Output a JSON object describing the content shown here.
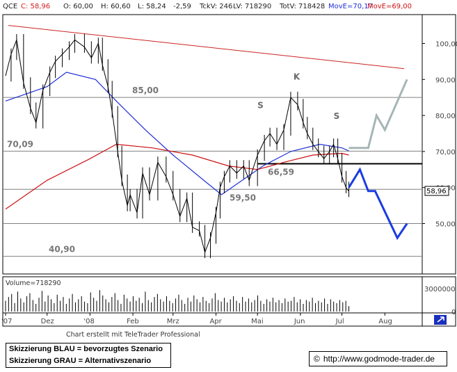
{
  "header": {
    "symbol": "QCE",
    "close": "C: 58,96",
    "open": "O: 60,00",
    "high": "H: 60,60",
    "low": "L: 58,24",
    "change": "-2,59",
    "tick_volume": "TckV: 246",
    "last_volume": "LV: 718290",
    "total_volume": "TotV: 718428",
    "ma_blue": "MovE=70,17",
    "ma_red": "MovE=69,00"
  },
  "colors": {
    "price": "#000000",
    "ma_blue": "#1f2fd6",
    "ma_red": "#cc1111",
    "trend": "#cc2222",
    "level": "#808080",
    "support": "#000000",
    "scenario_blue": "#1a3de0",
    "scenario_gray": "#a6b5b5",
    "volume": "#000000"
  },
  "chart_data": {
    "type": "line",
    "title": "",
    "ylim": [
      36,
      108
    ],
    "y_ticks": [
      "100,00",
      "90,00",
      "80,00",
      "70,00",
      "60,00",
      "50,00"
    ],
    "y_tick_values": [
      100,
      90,
      80,
      70,
      60,
      50
    ],
    "x_ticks": [
      "'07",
      "Dez",
      "'08",
      "Feb",
      "Mrz",
      "Apr",
      "Mai",
      "Jun",
      "Jul",
      "Aug"
    ],
    "x_tick_dates": [
      "2007-11-01",
      "2007-12-01",
      "2008-01-01",
      "2008-02-01",
      "2008-03-01",
      "2008-04-01",
      "2008-05-01",
      "2008-06-01",
      "2008-07-01",
      "2008-08-01"
    ],
    "last_price_label": "58,96",
    "price_series": {
      "name": "QCE",
      "points": [
        [
          "2007-11-01",
          91
        ],
        [
          "2007-11-05",
          97
        ],
        [
          "2007-11-09",
          101
        ],
        [
          "2007-11-14",
          89
        ],
        [
          "2007-11-19",
          82
        ],
        [
          "2007-11-23",
          78
        ],
        [
          "2007-11-28",
          87
        ],
        [
          "2007-12-03",
          92
        ],
        [
          "2007-12-07",
          95
        ],
        [
          "2007-12-12",
          97
        ],
        [
          "2007-12-17",
          99
        ],
        [
          "2007-12-21",
          101
        ],
        [
          "2007-12-28",
          99
        ],
        [
          "2008-01-02",
          96
        ],
        [
          "2008-01-07",
          100
        ],
        [
          "2008-01-10",
          94
        ],
        [
          "2008-01-14",
          88
        ],
        [
          "2008-01-17",
          81
        ],
        [
          "2008-01-21",
          70
        ],
        [
          "2008-01-24",
          62
        ],
        [
          "2008-01-28",
          55
        ],
        [
          "2008-01-30",
          58
        ],
        [
          "2008-02-04",
          53
        ],
        [
          "2008-02-08",
          64
        ],
        [
          "2008-02-13",
          58
        ],
        [
          "2008-02-19",
          67
        ],
        [
          "2008-02-25",
          63
        ],
        [
          "2008-03-01",
          58
        ],
        [
          "2008-03-06",
          52
        ],
        [
          "2008-03-11",
          57
        ],
        [
          "2008-03-15",
          49
        ],
        [
          "2008-03-20",
          48
        ],
        [
          "2008-03-24",
          42
        ],
        [
          "2008-03-28",
          46
        ],
        [
          "2008-04-01",
          53
        ],
        [
          "2008-04-04",
          60
        ],
        [
          "2008-04-07",
          63
        ],
        [
          "2008-04-11",
          66
        ],
        [
          "2008-04-16",
          64
        ],
        [
          "2008-04-21",
          66
        ],
        [
          "2008-04-25",
          62
        ],
        [
          "2008-05-01",
          69
        ],
        [
          "2008-05-06",
          73
        ],
        [
          "2008-05-10",
          75
        ],
        [
          "2008-05-15",
          72
        ],
        [
          "2008-05-20",
          76
        ],
        [
          "2008-05-25",
          85
        ],
        [
          "2008-05-30",
          83
        ],
        [
          "2008-06-03",
          78
        ],
        [
          "2008-06-06",
          75
        ],
        [
          "2008-06-10",
          72
        ],
        [
          "2008-06-14",
          70
        ],
        [
          "2008-06-18",
          68
        ],
        [
          "2008-06-22",
          70
        ],
        [
          "2008-06-25",
          72
        ],
        [
          "2008-06-28",
          68
        ],
        [
          "2008-07-01",
          63
        ],
        [
          "2008-07-04",
          60
        ],
        [
          "2008-07-06",
          58.96
        ]
      ]
    },
    "moving_averages": [
      {
        "color": "blue",
        "label": "MovE=70,17",
        "points": [
          [
            "2007-11-01",
            84
          ],
          [
            "2007-12-01",
            88
          ],
          [
            "2007-12-15",
            92
          ],
          [
            "2008-01-05",
            90
          ],
          [
            "2008-01-20",
            84
          ],
          [
            "2008-02-10",
            76
          ],
          [
            "2008-03-01",
            69
          ],
          [
            "2008-03-20",
            63
          ],
          [
            "2008-04-05",
            58
          ],
          [
            "2008-04-20",
            62
          ],
          [
            "2008-05-05",
            66
          ],
          [
            "2008-05-25",
            70
          ],
          [
            "2008-06-15",
            72
          ],
          [
            "2008-07-01",
            71
          ],
          [
            "2008-07-06",
            70.17
          ]
        ]
      },
      {
        "color": "red",
        "label": "MovE=69,00",
        "points": [
          [
            "2007-11-01",
            54
          ],
          [
            "2007-12-01",
            62
          ],
          [
            "2008-01-01",
            68
          ],
          [
            "2008-01-20",
            72
          ],
          [
            "2008-02-15",
            71
          ],
          [
            "2008-03-15",
            69
          ],
          [
            "2008-04-10",
            66
          ],
          [
            "2008-05-01",
            65
          ],
          [
            "2008-05-20",
            67
          ],
          [
            "2008-06-10",
            69
          ],
          [
            "2008-07-01",
            69.5
          ],
          [
            "2008-07-06",
            69.0
          ]
        ]
      }
    ],
    "horizontal_levels": [
      {
        "label": "85,00",
        "value": 85.0
      },
      {
        "label": "70,09",
        "value": 70.09
      },
      {
        "label": "66,59",
        "value": 66.59,
        "color": "black"
      },
      {
        "label": "59,50",
        "value": 59.5
      },
      {
        "label": "",
        "value": 50.0
      },
      {
        "label": "40,90",
        "value": 40.9
      }
    ],
    "trendline": {
      "start": [
        "2007-11-03",
        105
      ],
      "end": [
        "2008-08-15",
        93
      ]
    },
    "pattern_labels": [
      {
        "text": "S",
        "x": "2008-05-01",
        "y": 82
      },
      {
        "text": "K",
        "x": "2008-05-27",
        "y": 90
      },
      {
        "text": "S",
        "x": "2008-06-25",
        "y": 79
      }
    ],
    "scenario_blue": [
      [
        "2008-07-06",
        60
      ],
      [
        "2008-07-14",
        65
      ],
      [
        "2008-07-20",
        59
      ],
      [
        "2008-07-25",
        59
      ],
      [
        "2008-08-10",
        46
      ],
      [
        "2008-08-17",
        50
      ]
    ],
    "scenario_gray": [
      [
        "2008-07-06",
        71
      ],
      [
        "2008-07-14",
        71
      ],
      [
        "2008-07-20",
        71
      ],
      [
        "2008-07-26",
        80
      ],
      [
        "2008-08-01",
        76
      ],
      [
        "2008-08-17",
        90
      ]
    ],
    "volume": {
      "label": "Volume=718290",
      "y_ticks": [
        "3000000",
        "0"
      ],
      "y_tick_values": [
        3000000,
        0
      ],
      "max": 4000000,
      "bars": [
        1.4,
        1.9,
        2.3,
        1.1,
        2.6,
        1.7,
        1.2,
        2.0,
        2.4,
        1.5,
        1.0,
        1.8,
        2.7,
        1.3,
        2.1,
        1.6,
        1.1,
        2.2,
        1.4,
        1.9,
        1.0,
        1.7,
        2.3,
        1.2,
        1.6,
        2.0,
        1.3,
        1.1,
        2.5,
        1.8,
        1.4,
        2.8,
        2.1,
        1.6,
        1.2,
        1.9,
        2.4,
        1.5,
        1.0,
        2.2,
        1.7,
        1.3,
        2.0,
        1.4,
        1.8,
        1.1,
        2.6,
        1.5,
        1.2,
        1.9,
        2.3,
        1.6,
        1.3,
        2.0,
        1.4,
        1.1,
        1.7,
        2.2,
        1.5,
        1.0,
        1.8,
        1.3,
        2.1,
        1.6,
        1.2,
        1.9,
        1.4,
        1.1,
        1.7,
        2.4,
        1.5,
        1.3,
        1.8,
        1.2,
        1.6,
        2.0,
        1.4,
        1.1,
        1.9,
        1.3,
        1.7,
        1.2,
        1.5,
        2.1,
        1.4,
        1.0,
        1.6,
        1.3,
        1.8,
        1.2,
        1.5,
        1.1,
        1.7,
        1.3,
        1.4,
        1.9,
        1.2,
        1.6,
        1.0,
        1.5,
        1.3,
        1.8,
        1.1,
        1.4,
        1.2,
        1.7,
        1.0,
        1.6,
        1.3,
        1.1,
        1.5,
        1.2,
        1.4,
        0.7
      ]
    }
  },
  "footer": {
    "credit": "Chart erstellt mit TeleTrader Professional",
    "legend_line1": "Skizzierung BLAU = bevorzugtes Szenario",
    "legend_line2": "Skizzierung GRAU = Alternativszenario",
    "copyright_symbol": "©",
    "url": "http://www.godmode-trader.de"
  }
}
